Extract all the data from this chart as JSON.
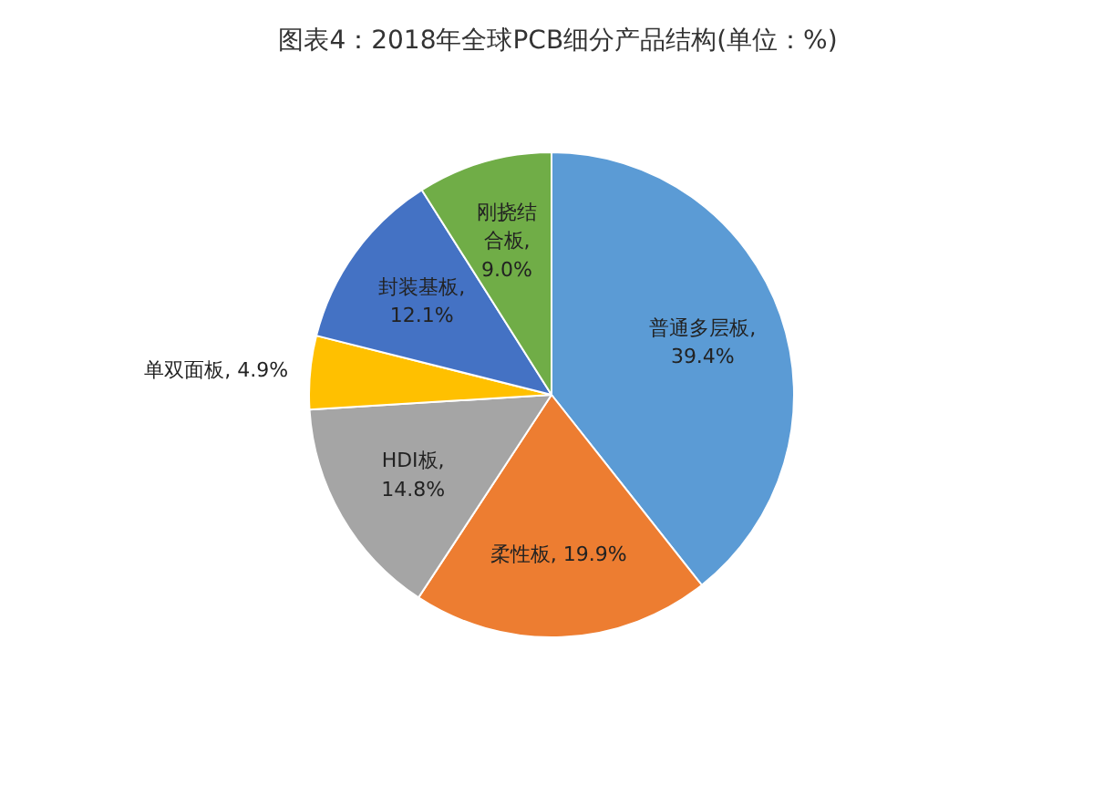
{
  "chart_data": {
    "type": "pie",
    "title": "图表4：2018年全球PCB细分产品结构(单位：%)",
    "categories": [
      "普通多层板",
      "柔性板",
      "HDI板",
      "单双面板",
      "封装基板",
      "刚挠结合板"
    ],
    "values": [
      39.4,
      19.9,
      14.8,
      4.9,
      12.1,
      9.0
    ],
    "value_labels": [
      ", 39.4%",
      ", 19.9%",
      ", 14.8%",
      ", 4.9%",
      ", 12.1%",
      ", 9.0%"
    ],
    "colors": [
      "#5b9bd5",
      "#ed7d31",
      "#a5a5a5",
      "#ffc000",
      "#4472c4",
      "#70ad47"
    ],
    "legend": false
  }
}
